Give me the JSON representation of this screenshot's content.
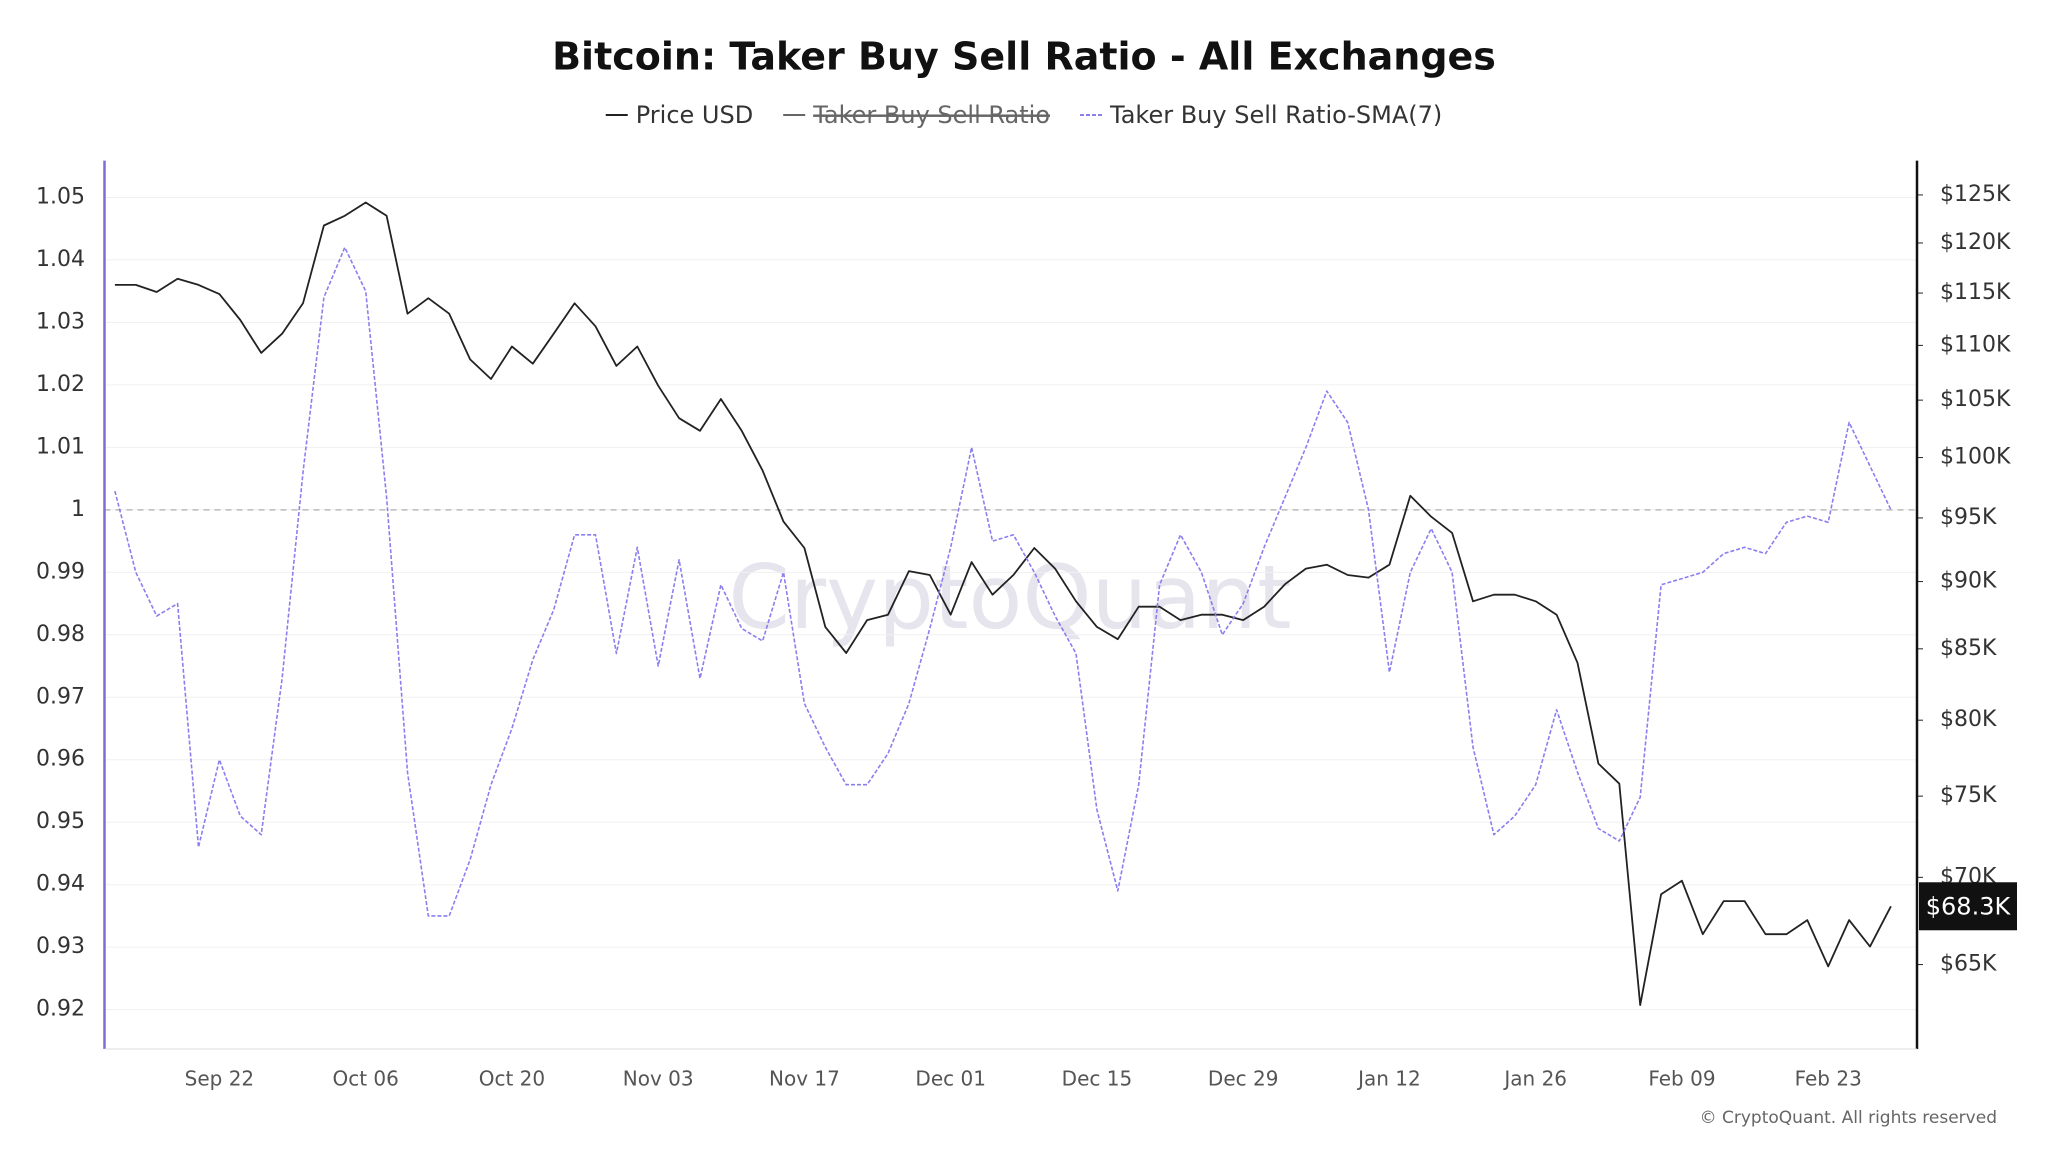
{
  "chart_data": {
    "type": "line",
    "title": "Bitcoin: Taker Buy Sell Ratio - All Exchanges",
    "categories": [
      null,
      null,
      null,
      null,
      null,
      "Sep 22",
      null,
      null,
      null,
      null,
      null,
      null,
      "Oct 06",
      null,
      null,
      null,
      null,
      null,
      null,
      "Oct 20",
      null,
      null,
      null,
      null,
      null,
      null,
      "Nov 03",
      null,
      null,
      null,
      null,
      null,
      null,
      "Nov 17",
      null,
      null,
      null,
      null,
      null,
      null,
      "Dec 01",
      null,
      null,
      null,
      null,
      null,
      null,
      "Dec 15",
      null,
      null,
      null,
      null,
      null,
      null,
      "Dec 29",
      null,
      null,
      null,
      null,
      null,
      null,
      "Jan 12",
      null,
      null,
      null,
      null,
      null,
      null,
      "Jan 26",
      null,
      null,
      null,
      null,
      null,
      null,
      "Feb 09",
      null,
      null,
      null,
      null,
      null,
      null,
      "Feb 23",
      null,
      null,
      null
    ],
    "ylim": [
      0.9137,
      1.0559
    ],
    "yticks": [
      0.92,
      0.93,
      0.94,
      0.95,
      0.96,
      0.97,
      0.98,
      0.99,
      1,
      1.01,
      1.02,
      1.03,
      1.04,
      1.05
    ],
    "y2lim": [
      60.5,
      128.7
    ],
    "y2scale": "log",
    "y2ticks": [
      {
        "value": 65,
        "label": "$65K"
      },
      {
        "value": 70,
        "label": "$70K"
      },
      {
        "value": 75,
        "label": "$75K"
      },
      {
        "value": 80,
        "label": "$80K"
      },
      {
        "value": 85,
        "label": "$85K"
      },
      {
        "value": 90,
        "label": "$90K"
      },
      {
        "value": 95,
        "label": "$95K"
      },
      {
        "value": 100,
        "label": "$100K"
      },
      {
        "value": 105,
        "label": "$105K"
      },
      {
        "value": 110,
        "label": "$110K"
      },
      {
        "value": 115,
        "label": "$115K"
      },
      {
        "value": 120,
        "label": "$120K"
      },
      {
        "value": 125,
        "label": "$125K"
      }
    ],
    "grid": true,
    "hline": 1,
    "series": [
      {
        "name": "Price USD",
        "color": "#222222",
        "axis": "y2",
        "values": [
          115.8,
          115.8,
          115.1,
          116.4,
          115.8,
          114.9,
          112.4,
          109.3,
          111.1,
          114.0,
          121.8,
          122.8,
          124.2,
          122.8,
          113.0,
          114.5,
          113.0,
          108.7,
          106.9,
          109.9,
          108.3,
          111.1,
          114.0,
          111.8,
          108.1,
          109.9,
          106.3,
          103.4,
          102.3,
          105.1,
          102.3,
          98.9,
          94.7,
          92.6,
          86.6,
          84.7,
          87.1,
          87.5,
          90.8,
          90.5,
          87.5,
          91.5,
          89.0,
          90.5,
          92.6,
          91.0,
          88.5,
          86.6,
          85.7,
          88.1,
          88.1,
          87.1,
          87.5,
          87.5,
          87.1,
          88.1,
          89.8,
          91.0,
          91.3,
          90.5,
          90.3,
          91.3,
          96.8,
          95.1,
          93.8,
          88.5,
          89.0,
          89.0,
          88.5,
          87.5,
          84.0,
          77.1,
          75.8,
          62.8,
          69.0,
          69.8,
          66.7,
          68.6,
          68.6,
          66.7,
          66.7,
          67.5,
          64.9,
          67.5,
          66.0,
          68.3
        ],
        "value_labels": [
          null,
          null,
          null,
          null,
          null,
          null,
          null,
          null,
          null,
          null,
          null,
          null,
          null,
          null,
          null,
          null,
          null,
          null,
          null,
          null,
          null,
          null,
          null,
          null,
          null,
          null,
          null,
          null,
          null,
          null,
          null,
          null,
          null,
          null,
          null,
          null,
          null,
          null,
          null,
          null,
          null,
          null,
          null,
          null,
          null,
          null,
          null,
          null,
          null,
          null,
          null,
          null,
          null,
          null,
          null,
          null,
          null,
          null,
          null,
          null,
          null,
          null,
          null,
          null,
          null,
          null,
          null,
          null,
          null,
          null,
          null,
          null,
          null,
          null,
          null,
          null,
          null,
          null,
          null,
          null,
          null,
          null,
          null,
          null,
          null,
          "$68.3K"
        ]
      },
      {
        "name": "Taker Buy Sell Ratio",
        "color": "#555555",
        "hidden": true
      },
      {
        "name": "Taker Buy Sell Ratio-SMA(7)",
        "color": "#8b7ff0",
        "dashed": true,
        "values": [
          1.003,
          0.99,
          0.983,
          0.985,
          0.946,
          0.96,
          0.951,
          0.948,
          0.973,
          1.006,
          1.034,
          1.042,
          1.035,
          1.002,
          0.958,
          0.935,
          0.935,
          0.944,
          0.956,
          0.965,
          0.976,
          0.984,
          0.996,
          0.996,
          0.977,
          0.994,
          0.975,
          0.992,
          0.973,
          0.988,
          0.981,
          0.979,
          0.99,
          0.969,
          0.962,
          0.956,
          0.956,
          0.961,
          0.969,
          0.981,
          0.994,
          1.01,
          0.995,
          0.996,
          0.99,
          0.983,
          0.977,
          0.952,
          0.939,
          0.956,
          0.988,
          0.996,
          0.99,
          0.98,
          0.985,
          0.994,
          1.002,
          1.01,
          1.019,
          1.014,
          1.0,
          0.974,
          0.99,
          0.997,
          0.99,
          0.962,
          0.948,
          0.951,
          0.956,
          0.968,
          0.958,
          0.949,
          0.947,
          0.954,
          0.988,
          0.989,
          0.99,
          0.993,
          0.994,
          0.993,
          0.998,
          0.999,
          0.998,
          1.014,
          1.007,
          1.0
        ]
      }
    ],
    "watermark": "CryptoQuant",
    "credit": "© CryptoQuant. All rights reserved"
  }
}
